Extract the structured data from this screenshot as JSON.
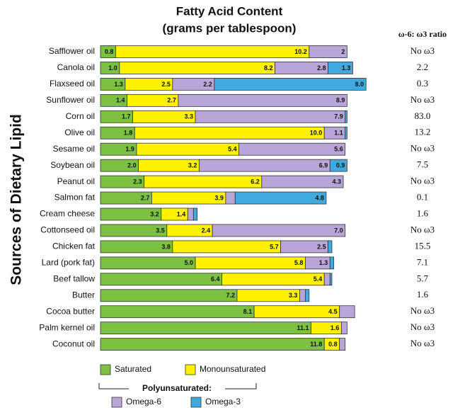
{
  "chart_data": {
    "type": "stacked-bar-horizontal",
    "title": "Fatty Acid Content",
    "subtitle": "(grams per tablespoon)",
    "y_label": "Sources of Dietary Lipid",
    "legend_group_title": "Polyunsaturated:",
    "categories": [
      "Safflower oil",
      "Canola oil",
      "Flaxseed oil",
      "Sunflower oil",
      "Corn oil",
      "Olive oil",
      "Sesame oil",
      "Soybean oil",
      "Peanut oil",
      "Salmon fat",
      "Cream cheese",
      "Cottonseed oil",
      "Chicken fat",
      "Lard (pork fat)",
      "Beef tallow",
      "Butter",
      "Cocoa butter",
      "Palm kernel oil",
      "Coconut oil"
    ],
    "series": [
      {
        "name": "Saturated",
        "color": "#7dc142",
        "values": [
          0.8,
          1.0,
          1.3,
          1.4,
          1.7,
          1.8,
          1.9,
          2.0,
          2.3,
          2.7,
          3.2,
          3.5,
          3.8,
          5.0,
          6.4,
          7.2,
          8.1,
          11.1,
          11.8
        ],
        "value_labels": [
          "0.8",
          "1.0",
          "1.3",
          "1.4",
          "1.7",
          "1.8",
          "1.9",
          "2.0",
          "2.3",
          "2.7",
          "3.2",
          "3.5",
          "3.8",
          "5.0",
          "6.4",
          "7.2",
          "8.1",
          "11.1",
          "11.8"
        ]
      },
      {
        "name": "Monounsaturated",
        "color": "#fff200",
        "values": [
          10.2,
          8.2,
          2.5,
          2.7,
          3.3,
          10.0,
          5.4,
          3.2,
          6.2,
          3.9,
          1.4,
          2.4,
          5.7,
          5.8,
          5.4,
          3.3,
          4.5,
          1.6,
          0.8
        ],
        "value_labels": [
          "10.2",
          "8.2",
          "2.5",
          "2.7",
          "3.3",
          "10.0",
          "5.4",
          "3.2",
          "6.2",
          "3.9",
          "1.4",
          "2.4",
          "5.7",
          "5.8",
          "5.4",
          "3.3",
          "4.5",
          "1.6",
          "0.8"
        ]
      },
      {
        "name": "Omega-6",
        "color": "#b9a6d8",
        "values": [
          2,
          2.8,
          2.2,
          8.9,
          7.9,
          1.1,
          5.6,
          6.9,
          4.3,
          0.5,
          0.3,
          7.0,
          2.5,
          1.3,
          0.3,
          0.3,
          0.8,
          0.3,
          0.3
        ],
        "value_labels": [
          "2",
          "2.8",
          "2.2",
          "8.9",
          "7.9",
          "1.1",
          "5.6",
          "6.9",
          "4.3",
          null,
          null,
          "7.0",
          "2.5",
          "1.3",
          null,
          null,
          null,
          null,
          null
        ]
      },
      {
        "name": "Omega-3",
        "color": "#3fa9e0",
        "values": [
          0,
          1.3,
          8.0,
          0,
          0.1,
          0.1,
          0,
          0.9,
          0,
          4.8,
          0.2,
          0,
          0.2,
          0.2,
          0.1,
          0.2,
          0,
          0,
          0
        ],
        "value_labels": [
          null,
          "1.3",
          "8.0",
          null,
          null,
          null,
          null,
          "0.9",
          null,
          "4.8",
          null,
          null,
          null,
          null,
          null,
          null,
          null,
          null,
          null
        ]
      }
    ],
    "ratio_column": {
      "title": "ω-6: ω3 ratio",
      "labels": [
        "No ω3",
        "2.2",
        "0.3",
        "No ω3",
        "83.0",
        "13.2",
        "No ω3",
        "7.5",
        "No ω3",
        "0.1",
        "1.6",
        "No ω3",
        "15.5",
        "7.1",
        "5.7",
        "1.6",
        "No ω3",
        "No ω3",
        "No ω3"
      ]
    }
  }
}
